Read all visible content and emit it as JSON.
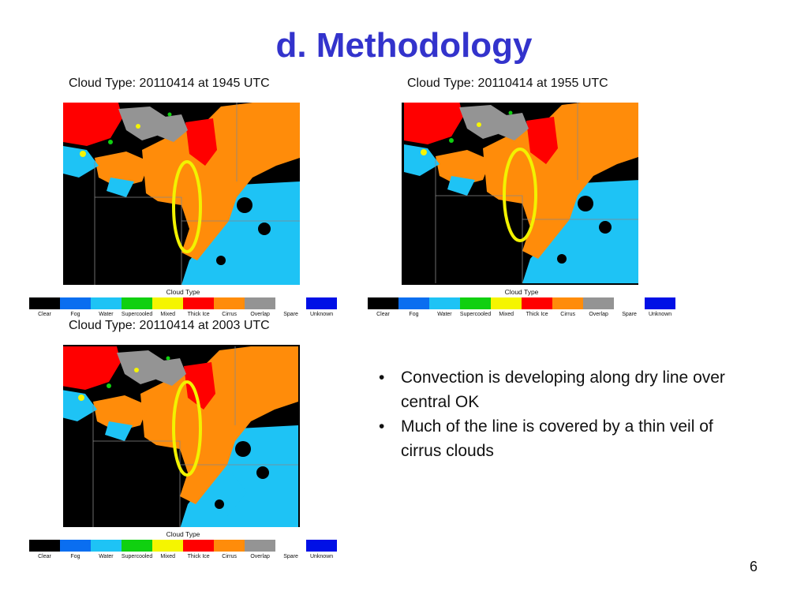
{
  "slide": {
    "title": "d. Methodology",
    "page_number": "6"
  },
  "panels": [
    {
      "title": "Cloud Type: 20110414 at 1945 UTC"
    },
    {
      "title": "Cloud Type: 20110414 at 1955 UTC"
    },
    {
      "title": "Cloud Type: 20110414 at 2003 UTC"
    }
  ],
  "colorbar": {
    "caption": "Cloud Type",
    "classes": [
      {
        "label": "Clear",
        "color": "#000000"
      },
      {
        "label": "Fog",
        "color": "#0a6ef0"
      },
      {
        "label": "Water",
        "color": "#1ec3f5"
      },
      {
        "label": "Supercooled",
        "color": "#10d010"
      },
      {
        "label": "Mixed",
        "color": "#f5f500"
      },
      {
        "label": "Thick Ice",
        "color": "#ff0000"
      },
      {
        "label": "Cirrus",
        "color": "#ff8c0a"
      },
      {
        "label": "Overlap",
        "color": "#949494"
      },
      {
        "label": "Spare",
        "color": "#ffffff"
      },
      {
        "label": "Unknown",
        "color": "#0010e6"
      }
    ]
  },
  "bullets": [
    "Convection is developing along dry line over central OK",
    "Much of the line is covered by a thin veil of cirrus clouds"
  ]
}
